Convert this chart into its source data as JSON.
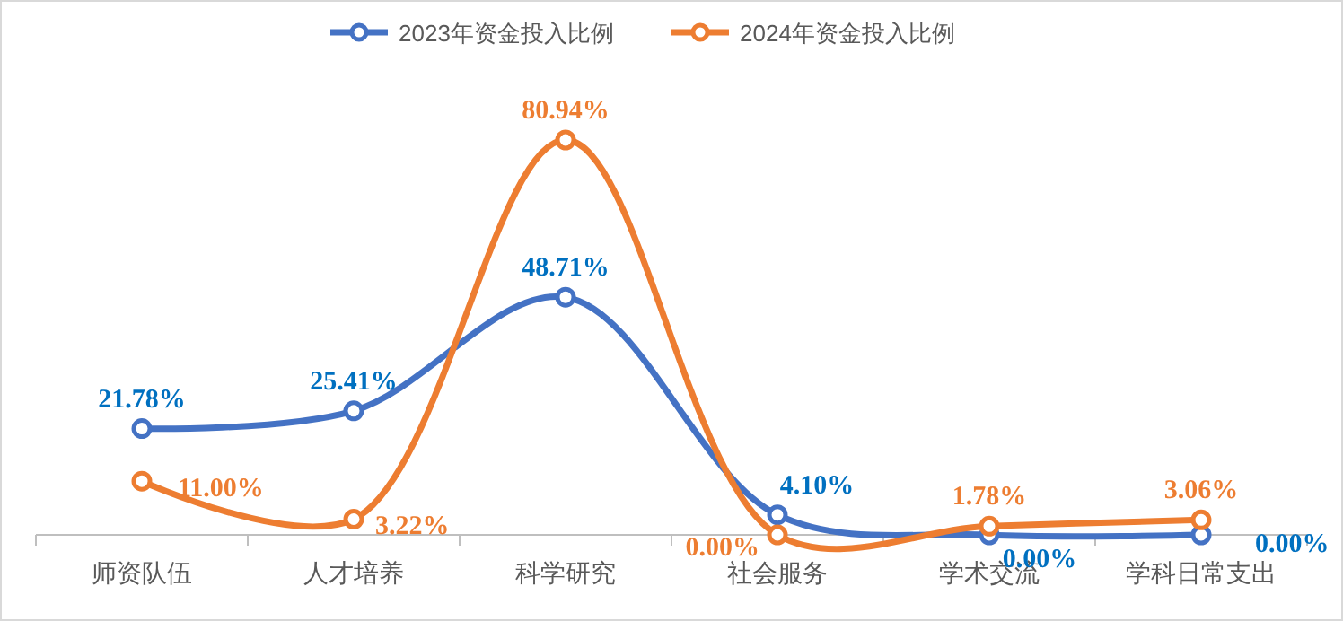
{
  "chart_data": {
    "type": "line",
    "categories": [
      "师资队伍",
      "人才培养",
      "科学研究",
      "社会服务",
      "学术交流",
      "学科日常支出"
    ],
    "series": [
      {
        "name": "2023年资金投入比例",
        "color": "#4472c4",
        "values": [
          21.78,
          25.41,
          48.71,
          4.1,
          0.0,
          0.0
        ],
        "value_labels": [
          "21.78%",
          "25.41%",
          "48.71%",
          "4.10%",
          "0.00%",
          "0.00%"
        ]
      },
      {
        "name": "2024年资金投入比例",
        "color": "#ed7d31",
        "values": [
          11.0,
          3.22,
          80.94,
          0.0,
          1.78,
          3.06
        ],
        "value_labels": [
          "11.00%",
          "3.22%",
          "80.94%",
          "0.00%",
          "1.78%",
          "3.06%"
        ]
      }
    ],
    "tick_labels": "x",
    "legend": "top",
    "marker": "circle",
    "line_style": "solid",
    "grid": false
  }
}
